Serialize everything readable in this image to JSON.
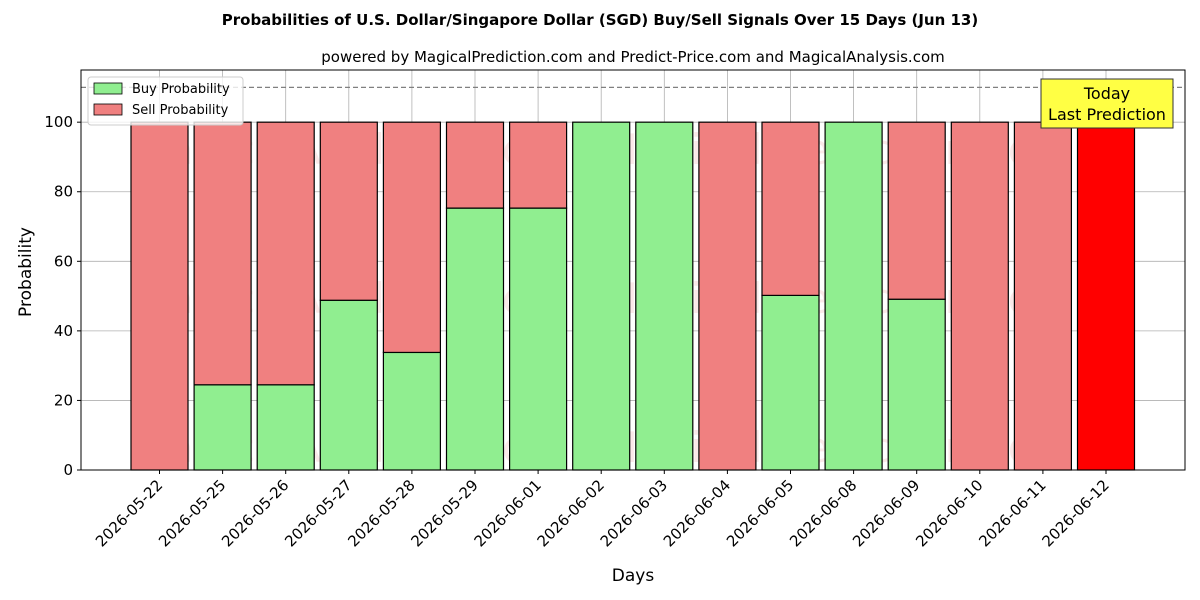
{
  "chart_data": {
    "type": "bar",
    "stacked": true,
    "title": "Probabilities of U.S. Dollar/Singapore Dollar (SGD) Buy/Sell Signals Over 15 Days (Jun 13)",
    "subtitle": "powered by MagicalPrediction.com and Predict-Price.com and MagicalAnalysis.com",
    "xlabel": "Days",
    "ylabel": "Probability",
    "ylim": [
      0,
      115
    ],
    "yticks": [
      0,
      20,
      40,
      60,
      80,
      100
    ],
    "reference_line": 110,
    "grid": true,
    "legend_position": "top-left",
    "categories": [
      "2026-05-22",
      "2026-05-25",
      "2026-05-26",
      "2026-05-27",
      "2026-05-28",
      "2026-05-29",
      "2026-06-01",
      "2026-06-02",
      "2026-06-03",
      "2026-06-04",
      "2026-06-05",
      "2026-06-08",
      "2026-06-09",
      "2026-06-10",
      "2026-06-11",
      "2026-06-12"
    ],
    "series": [
      {
        "name": "Buy Probability",
        "color": "#90ee90",
        "values": [
          0,
          24.5,
          24.5,
          48.8,
          33.8,
          75.3,
          75.3,
          100,
          100,
          0,
          50.2,
          100,
          49.1,
          0,
          0,
          0
        ]
      },
      {
        "name": "Sell Probability",
        "color": "#f08080",
        "values": [
          100,
          75.5,
          75.5,
          51.2,
          66.2,
          24.7,
          24.7,
          0,
          0,
          100,
          49.8,
          0,
          50.9,
          100,
          100,
          100
        ]
      }
    ],
    "highlight": {
      "index": 15,
      "color": "#ff0000"
    },
    "annotation": {
      "lines": [
        "Today",
        "Last Prediction"
      ],
      "background": "#ffff44"
    },
    "watermarks": [
      "MagicalAnalysis.com",
      "MagicalPrediction.com"
    ]
  }
}
